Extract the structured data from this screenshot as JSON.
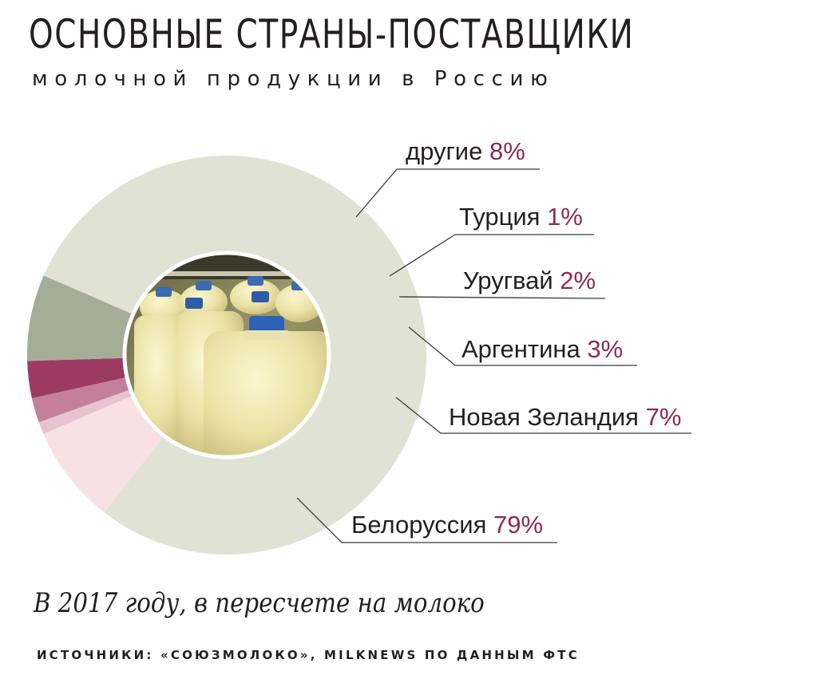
{
  "title": "ОСНОВНЫЕ СТРАНЫ-ПОСТАВЩИКИ",
  "subtitle": "молочной продукции в Россию",
  "note": "В 2017 году, в пересчете на молоко",
  "source": "ИСТОЧНИКИ: «СОЮЗМОЛОКО», MILKNEWS ПО ДАННЫМ ФТС",
  "chart_data": {
    "type": "pie",
    "style": "donut",
    "center_image": "milk-bottles-photo",
    "series": [
      {
        "name": "Белоруссия",
        "label": "79%",
        "value": 79,
        "color": "#e0e3d4"
      },
      {
        "name": "другие",
        "label": "8%",
        "value": 8,
        "color": "#f7e1e5"
      },
      {
        "name": "Турция",
        "label": "1%",
        "value": 1,
        "color": "#e6c3cf"
      },
      {
        "name": "Уругвай",
        "label": "2%",
        "value": 2,
        "color": "#c4809b"
      },
      {
        "name": "Аргентина",
        "label": "3%",
        "value": 3,
        "color": "#9c3a64"
      },
      {
        "name": "Новая Зеландия",
        "label": "7%",
        "value": 7,
        "color": "#a5ad97"
      }
    ]
  }
}
